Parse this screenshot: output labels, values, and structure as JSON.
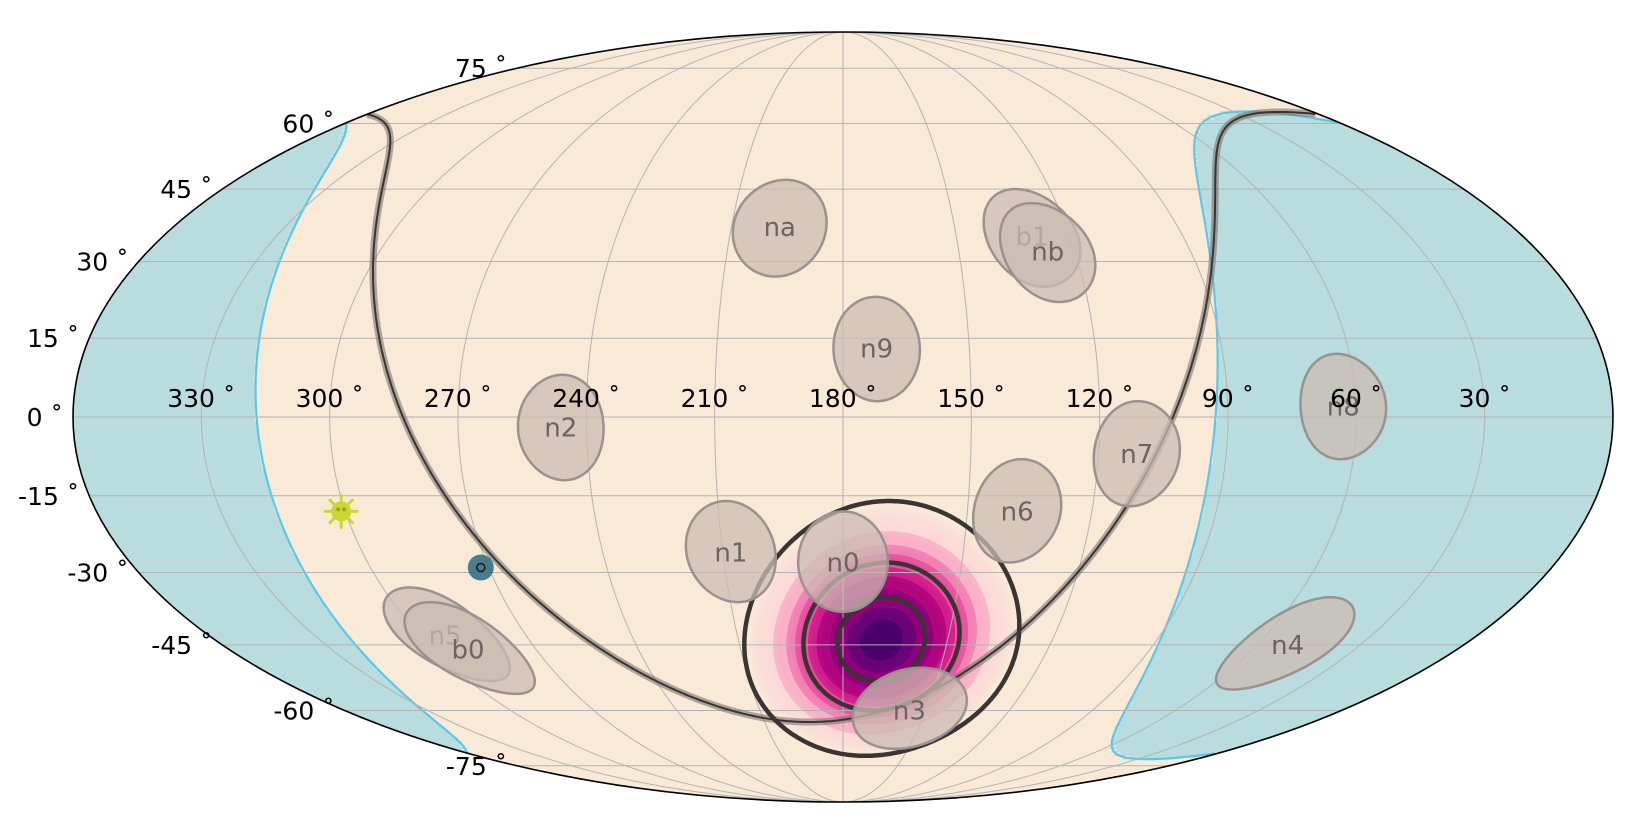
{
  "chart_data": {
    "type": "skymap",
    "projection": "mollweide",
    "x_axis": {
      "direction": "decreasing-right",
      "ticks": [
        {
          "value": 330,
          "label": "330$^\\circ$",
          "text": "330 ˚"
        },
        {
          "value": 300,
          "label": "300˚",
          "text": "300 ˚"
        },
        {
          "value": 270,
          "text": "270 ˚"
        },
        {
          "value": 240,
          "text": "240 ˚"
        },
        {
          "value": 210,
          "text": "210 ˚"
        },
        {
          "value": 180,
          "text": "180 ˚"
        },
        {
          "value": 150,
          "text": "150 ˚"
        },
        {
          "value": 120,
          "text": "120 ˚"
        },
        {
          "value": 90,
          "text": "90 ˚"
        },
        {
          "value": 60,
          "text": "60 ˚"
        },
        {
          "value": 30,
          "text": "30 ˚"
        }
      ]
    },
    "y_axis": {
      "ticks": [
        {
          "value": 75,
          "text": "75 ˚"
        },
        {
          "value": 60,
          "text": "60 ˚"
        },
        {
          "value": 45,
          "text": "45 ˚"
        },
        {
          "value": 30,
          "text": "30 ˚"
        },
        {
          "value": 15,
          "text": "15 ˚"
        },
        {
          "value": 0,
          "text": "0 ˚"
        },
        {
          "value": -15,
          "text": "-15 ˚"
        },
        {
          "value": -30,
          "text": "-30 ˚"
        },
        {
          "value": -45,
          "text": "-45 ˚"
        },
        {
          "value": -60,
          "text": "-60 ˚"
        },
        {
          "value": -75,
          "text": "-75 ˚"
        }
      ]
    },
    "grid": true,
    "detectors": [
      {
        "name": "na",
        "ra": 197,
        "dec": 37,
        "radius": 10
      },
      {
        "name": "b1",
        "ra": 130,
        "dec": 35,
        "radius": 10
      },
      {
        "name": "nb",
        "ra": 127,
        "dec": 32,
        "radius": 10
      },
      {
        "name": "n9",
        "ra": 172,
        "dec": 13,
        "radius": 10
      },
      {
        "name": "n2",
        "ra": 246,
        "dec": -2,
        "radius": 10
      },
      {
        "name": "n8",
        "ra": 63,
        "dec": 2,
        "radius": 10
      },
      {
        "name": "n7",
        "ra": 111,
        "dec": -7,
        "radius": 10
      },
      {
        "name": "n6",
        "ra": 138,
        "dec": -18,
        "radius": 10
      },
      {
        "name": "n1",
        "ra": 208,
        "dec": -26,
        "radius": 10
      },
      {
        "name": "n0",
        "ra": 180,
        "dec": -28,
        "radius": 10
      },
      {
        "name": "n5",
        "ra": 293,
        "dec": -43,
        "radius": 10
      },
      {
        "name": "b0",
        "ra": 290,
        "dec": -46,
        "radius": 10
      },
      {
        "name": "n3",
        "ra": 156,
        "dec": -60,
        "radius": 10
      },
      {
        "name": "n4",
        "ra": 51,
        "dec": -45,
        "radius": 10
      }
    ],
    "localization": {
      "peak_ra": 169,
      "peak_dec": -44,
      "contour_radii_deg": [
        9,
        16,
        28
      ],
      "colormap": "RdPu"
    },
    "earth_occultation": {
      "center_ra": 25,
      "center_dec": -5,
      "radius_deg": 68
    },
    "galactic_plane": true,
    "markers": [
      {
        "type": "sun",
        "ra": 301,
        "dec": -18,
        "color": "#c9d832"
      },
      {
        "type": "point",
        "ra": 272,
        "dec": -29,
        "color": "#2b6a7e"
      }
    ],
    "colors": {
      "sky": "#f9ead8",
      "earth": "#b9dcde",
      "earth_edge": "#5ac8e8",
      "detector_fill": "#cbbcb2",
      "detector_edge": "#9a928e",
      "detector_text": "#6b6462",
      "contour": "#3a3533",
      "grid": "#b3b3b3"
    }
  }
}
